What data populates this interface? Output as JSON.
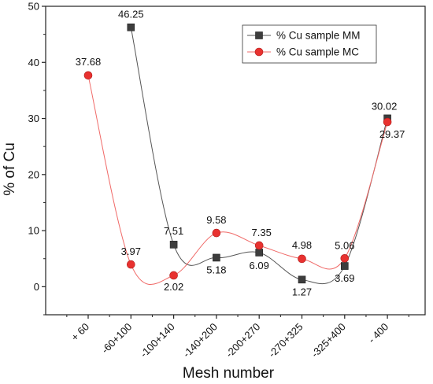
{
  "chart_data": {
    "type": "line",
    "title": "",
    "xlabel": "Mesh number",
    "ylabel": "% of Cu",
    "categories": [
      "+ 60",
      "-60+100",
      "-100+140",
      "-140+200",
      "-200+270",
      "-270+325",
      "-325+400",
      "- 400"
    ],
    "ylim": [
      -5,
      50
    ],
    "yticks": [
      0,
      10,
      20,
      30,
      40,
      50
    ],
    "grid": false,
    "legend_position": "top-right",
    "series": [
      {
        "name": "% Cu sample MM",
        "color": "#3d3d3d",
        "line_color": "#555555",
        "marker": "square",
        "values": [
          null,
          46.25,
          7.51,
          5.18,
          6.09,
          1.27,
          3.69,
          30.02
        ],
        "labels": [
          "",
          "46.25",
          "7.51",
          "5.18",
          "6.09",
          "1.27",
          "3.69",
          "30.02"
        ]
      },
      {
        "name": "% Cu sample MC",
        "color": "#e8312f",
        "line_color": "#f06a68",
        "marker": "circle",
        "values": [
          37.68,
          3.97,
          2.02,
          9.58,
          7.35,
          4.98,
          5.06,
          29.37
        ],
        "labels": [
          "37.68",
          "3.97",
          "2.02",
          "9.58",
          "7.35",
          "4.98",
          "5.06",
          "29.37"
        ]
      }
    ]
  }
}
